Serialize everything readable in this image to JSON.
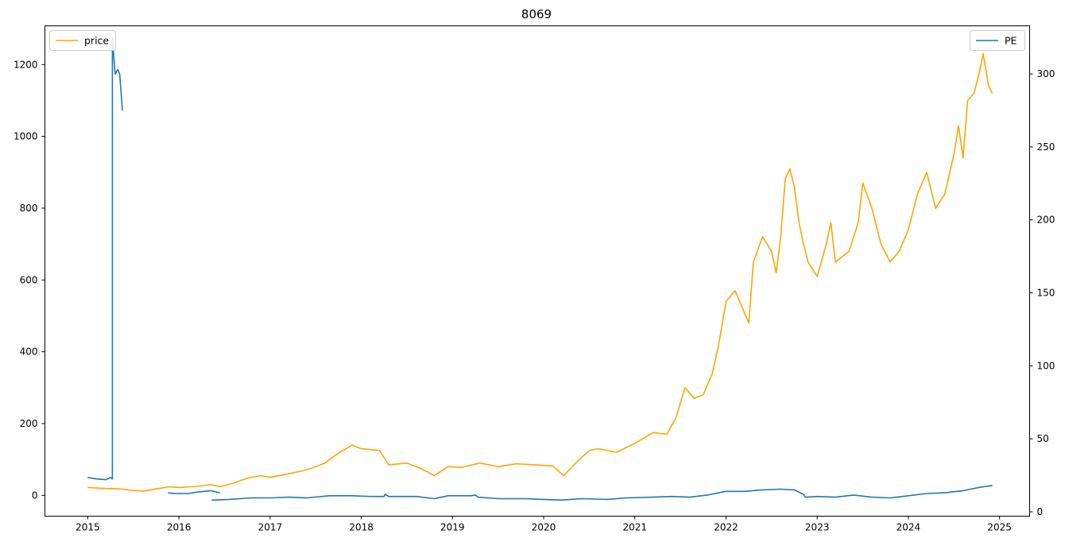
{
  "chart_data": {
    "type": "line",
    "title": "8069",
    "x_ticks": [
      "2015",
      "2016",
      "2017",
      "2018",
      "2019",
      "2020",
      "2021",
      "2022",
      "2023",
      "2024",
      "2025"
    ],
    "x_range": [
      2014.53,
      2025.33
    ],
    "y_left": {
      "ticks": [
        0,
        200,
        400,
        600,
        800,
        1000,
        1200
      ],
      "range": [
        -58,
        1308
      ]
    },
    "y_right": {
      "ticks": [
        0,
        50,
        100,
        150,
        200,
        250,
        300
      ],
      "range": [
        -3,
        333
      ]
    },
    "grid": false,
    "series": [
      {
        "name": "price",
        "axis": "left",
        "color": "#ffa500",
        "legend_position": "upper-left",
        "points": [
          [
            2015.0,
            22
          ],
          [
            2015.2,
            19
          ],
          [
            2015.35,
            18
          ],
          [
            2015.45,
            15
          ],
          [
            2015.6,
            12
          ],
          [
            2015.7,
            16
          ],
          [
            2015.9,
            24
          ],
          [
            2016.0,
            22
          ],
          [
            2016.2,
            25
          ],
          [
            2016.35,
            30
          ],
          [
            2016.45,
            24
          ],
          [
            2016.6,
            34
          ],
          [
            2016.75,
            48
          ],
          [
            2016.9,
            55
          ],
          [
            2017.0,
            50
          ],
          [
            2017.2,
            60
          ],
          [
            2017.35,
            68
          ],
          [
            2017.45,
            75
          ],
          [
            2017.6,
            90
          ],
          [
            2017.75,
            118
          ],
          [
            2017.9,
            140
          ],
          [
            2018.0,
            130
          ],
          [
            2018.2,
            125
          ],
          [
            2018.3,
            85
          ],
          [
            2018.5,
            90
          ],
          [
            2018.65,
            75
          ],
          [
            2018.8,
            55
          ],
          [
            2018.95,
            80
          ],
          [
            2019.1,
            78
          ],
          [
            2019.3,
            90
          ],
          [
            2019.5,
            80
          ],
          [
            2019.7,
            88
          ],
          [
            2019.9,
            85
          ],
          [
            2020.1,
            82
          ],
          [
            2020.22,
            55
          ],
          [
            2020.35,
            90
          ],
          [
            2020.5,
            125
          ],
          [
            2020.6,
            130
          ],
          [
            2020.8,
            120
          ],
          [
            2021.0,
            145
          ],
          [
            2021.2,
            175
          ],
          [
            2021.35,
            170
          ],
          [
            2021.45,
            215
          ],
          [
            2021.55,
            300
          ],
          [
            2021.65,
            270
          ],
          [
            2021.75,
            280
          ],
          [
            2021.85,
            340
          ],
          [
            2021.92,
            420
          ],
          [
            2022.0,
            540
          ],
          [
            2022.1,
            570
          ],
          [
            2022.15,
            540
          ],
          [
            2022.25,
            480
          ],
          [
            2022.3,
            650
          ],
          [
            2022.4,
            720
          ],
          [
            2022.5,
            680
          ],
          [
            2022.55,
            620
          ],
          [
            2022.6,
            720
          ],
          [
            2022.65,
            880
          ],
          [
            2022.7,
            910
          ],
          [
            2022.75,
            860
          ],
          [
            2022.8,
            760
          ],
          [
            2022.85,
            700
          ],
          [
            2022.9,
            650
          ],
          [
            2023.0,
            610
          ],
          [
            2023.1,
            700
          ],
          [
            2023.15,
            760
          ],
          [
            2023.2,
            650
          ],
          [
            2023.35,
            680
          ],
          [
            2023.45,
            760
          ],
          [
            2023.5,
            870
          ],
          [
            2023.6,
            800
          ],
          [
            2023.7,
            700
          ],
          [
            2023.8,
            650
          ],
          [
            2023.9,
            680
          ],
          [
            2024.0,
            740
          ],
          [
            2024.1,
            840
          ],
          [
            2024.2,
            900
          ],
          [
            2024.3,
            800
          ],
          [
            2024.4,
            840
          ],
          [
            2024.5,
            950
          ],
          [
            2024.55,
            1030
          ],
          [
            2024.6,
            940
          ],
          [
            2024.65,
            1100
          ],
          [
            2024.72,
            1120
          ],
          [
            2024.78,
            1180
          ],
          [
            2024.82,
            1230
          ],
          [
            2024.88,
            1140
          ],
          [
            2024.92,
            1120
          ]
        ]
      },
      {
        "name": "PE",
        "axis": "right",
        "color": "#1f77b4",
        "legend_position": "upper-right",
        "segments": [
          [
            [
              2015.0,
              23.5
            ],
            [
              2015.1,
              22.5
            ],
            [
              2015.2,
              22
            ],
            [
              2015.25,
              23.5
            ],
            [
              2015.27,
              22.5
            ],
            [
              2015.27,
              325
            ],
            [
              2015.3,
              300
            ],
            [
              2015.33,
              303
            ],
            [
              2015.35,
              300
            ],
            [
              2015.38,
              275
            ]
          ],
          [
            [
              2015.88,
              13
            ],
            [
              2015.95,
              12.5
            ],
            [
              2016.1,
              12.5
            ],
            [
              2016.2,
              13.5
            ],
            [
              2016.35,
              14.5
            ],
            [
              2016.45,
              13
            ]
          ],
          [
            [
              2016.36,
              8
            ],
            [
              2016.55,
              8.5
            ],
            [
              2016.8,
              9.5
            ],
            [
              2017.0,
              9.5
            ],
            [
              2017.2,
              10
            ],
            [
              2017.4,
              9.5
            ],
            [
              2017.65,
              11
            ],
            [
              2017.9,
              11
            ],
            [
              2018.1,
              10.5
            ],
            [
              2018.25,
              10.5
            ],
            [
              2018.26,
              12
            ],
            [
              2018.3,
              10.5
            ],
            [
              2018.6,
              10.5
            ],
            [
              2018.8,
              9
            ],
            [
              2018.95,
              11
            ],
            [
              2019.2,
              11
            ],
            [
              2019.25,
              11.5
            ],
            [
              2019.28,
              10
            ],
            [
              2019.5,
              9
            ],
            [
              2019.8,
              9
            ],
            [
              2020.0,
              8.5
            ],
            [
              2020.2,
              8
            ],
            [
              2020.4,
              9
            ],
            [
              2020.7,
              8.5
            ],
            [
              2020.9,
              9.5
            ],
            [
              2021.2,
              10
            ],
            [
              2021.4,
              10.5
            ],
            [
              2021.6,
              10
            ],
            [
              2021.8,
              11.5
            ],
            [
              2022.0,
              14
            ],
            [
              2022.2,
              14
            ],
            [
              2022.4,
              15
            ],
            [
              2022.6,
              15.5
            ],
            [
              2022.75,
              15
            ],
            [
              2022.85,
              12
            ],
            [
              2022.87,
              10
            ],
            [
              2023.0,
              10.5
            ],
            [
              2023.2,
              10
            ],
            [
              2023.4,
              11.5
            ],
            [
              2023.6,
              10
            ],
            [
              2023.8,
              9.5
            ],
            [
              2024.0,
              11
            ],
            [
              2024.2,
              12.5
            ],
            [
              2024.4,
              13
            ],
            [
              2024.6,
              14.5
            ],
            [
              2024.8,
              17
            ],
            [
              2024.92,
              18
            ]
          ]
        ]
      }
    ],
    "legends": [
      {
        "label": "price",
        "position": "top-left"
      },
      {
        "label": "PE",
        "position": "top-right"
      }
    ]
  }
}
